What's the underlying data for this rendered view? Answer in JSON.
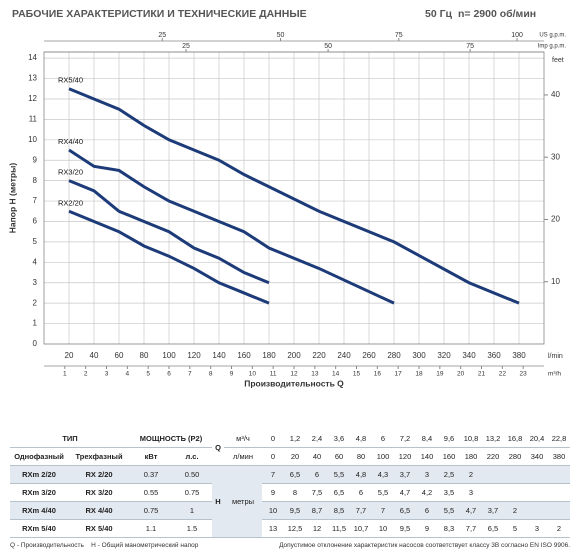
{
  "header": {
    "title": "РАБОЧИЕ ХАРАКТЕРИСТИКИ И ТЕХНИЧЕСКИЕ ДАННЫЕ",
    "freq": "50 Гц",
    "speed": "n= 2900 об/мин"
  },
  "chart_data": {
    "type": "line",
    "y_label": "Напор H (метры)",
    "x_label": "Производительность Q",
    "x_unit": "l/min",
    "x": [
      20,
      40,
      60,
      80,
      100,
      120,
      140,
      160,
      180,
      220,
      280,
      340,
      380
    ],
    "xlim": [
      0,
      400
    ],
    "xticks": [
      20,
      40,
      60,
      80,
      100,
      120,
      140,
      160,
      180,
      200,
      220,
      240,
      260,
      280,
      300,
      320,
      340,
      360,
      380
    ],
    "ylim": [
      0,
      14.3
    ],
    "yticks": [
      0,
      1,
      2,
      3,
      4,
      5,
      6,
      7,
      8,
      9,
      10,
      11,
      12,
      13,
      14
    ],
    "y2_label": "feet",
    "y2lim": [
      0,
      46.9
    ],
    "y2ticks": [
      10,
      20,
      30,
      40
    ],
    "top_axes": [
      {
        "label": "US g.p.m.",
        "lim": [
          0,
          105.7
        ],
        "ticks": [
          25,
          50,
          75,
          100
        ]
      },
      {
        "label": "Imp g.p.m.",
        "lim": [
          0,
          88
        ],
        "ticks": [
          25,
          50,
          75
        ]
      }
    ],
    "bottom_axis": {
      "label": "m³/h",
      "lim": [
        0,
        24
      ],
      "ticks": [
        1,
        2,
        3,
        4,
        5,
        6,
        7,
        8,
        9,
        10,
        11,
        12,
        13,
        14,
        15,
        16,
        17,
        18,
        19,
        20,
        21,
        22,
        23
      ]
    },
    "grid": true,
    "series": [
      {
        "name": "RX5/40",
        "color": "#1d3b78",
        "values": [
          12.5,
          12,
          11.5,
          10.7,
          10,
          9.5,
          9,
          8.3,
          7.7,
          6.5,
          5,
          3,
          2
        ]
      },
      {
        "name": "RX4/40",
        "color": "#1d3b78",
        "values": [
          9.5,
          8.7,
          8.5,
          7.7,
          7,
          6.5,
          6,
          5.5,
          4.7,
          3.7,
          2,
          null,
          null
        ]
      },
      {
        "name": "RX3/20",
        "color": "#1d3b78",
        "values": [
          8,
          7.5,
          6.5,
          6,
          5.5,
          4.7,
          4.2,
          3.5,
          3,
          null,
          null,
          null,
          null
        ]
      },
      {
        "name": "RX2/20",
        "color": "#1d3b78",
        "values": [
          6.5,
          6,
          5.5,
          4.8,
          4.3,
          3.7,
          3,
          2.5,
          2,
          null,
          null,
          null,
          null
        ]
      }
    ]
  },
  "table": {
    "head": {
      "type": "ТИП",
      "power": "МОЩНОСТЬ (P2)",
      "q": "Q",
      "m3h": "м³/ч",
      "single": "Однофазный",
      "three": "Трехфазный",
      "kw": "кВт",
      "hp": "л.с.",
      "lmin": "л/мин",
      "h": "H",
      "meters": "метры"
    },
    "q_m3h": [
      "0",
      "1,2",
      "2,4",
      "3,6",
      "4,8",
      "6",
      "7,2",
      "8,4",
      "9,6",
      "10,8",
      "13,2",
      "16,8",
      "20,4",
      "22,8"
    ],
    "q_lmin": [
      "0",
      "20",
      "40",
      "60",
      "80",
      "100",
      "120",
      "140",
      "160",
      "180",
      "220",
      "280",
      "340",
      "380"
    ],
    "rows": [
      {
        "single": "RXm 2/20",
        "three": "RX 2/20",
        "kw": "0.37",
        "hp": "0.50",
        "h": [
          "7",
          "6,5",
          "6",
          "5,5",
          "4,8",
          "4,3",
          "3,7",
          "3",
          "2,5",
          "2"
        ]
      },
      {
        "single": "RXm 3/20",
        "three": "RX 3/20",
        "kw": "0.55",
        "hp": "0.75",
        "h": [
          "9",
          "8",
          "7,5",
          "6,5",
          "6",
          "5,5",
          "4,7",
          "4,2",
          "3,5",
          "3"
        ]
      },
      {
        "single": "RXm 4/40",
        "three": "RX 4/40",
        "kw": "0.75",
        "hp": "1",
        "h": [
          "10",
          "9,5",
          "8,7",
          "8,5",
          "7,7",
          "7",
          "6,5",
          "6",
          "5,5",
          "4,7",
          "3,7",
          "2"
        ]
      },
      {
        "single": "RXm 5/40",
        "three": "RX 5/40",
        "kw": "1.1",
        "hp": "1.5",
        "h": [
          "13",
          "12,5",
          "12",
          "11,5",
          "10,7",
          "10",
          "9,5",
          "9",
          "8,3",
          "7,7",
          "6,5",
          "5",
          "3",
          "2"
        ]
      }
    ]
  },
  "footer": {
    "q": "Q - Производительность",
    "h": "H - Общий манометрический напор",
    "tolerance": "Допустимое отклонение характеристик насосов соответствует классу 3B согласно EN ISO 9906."
  }
}
